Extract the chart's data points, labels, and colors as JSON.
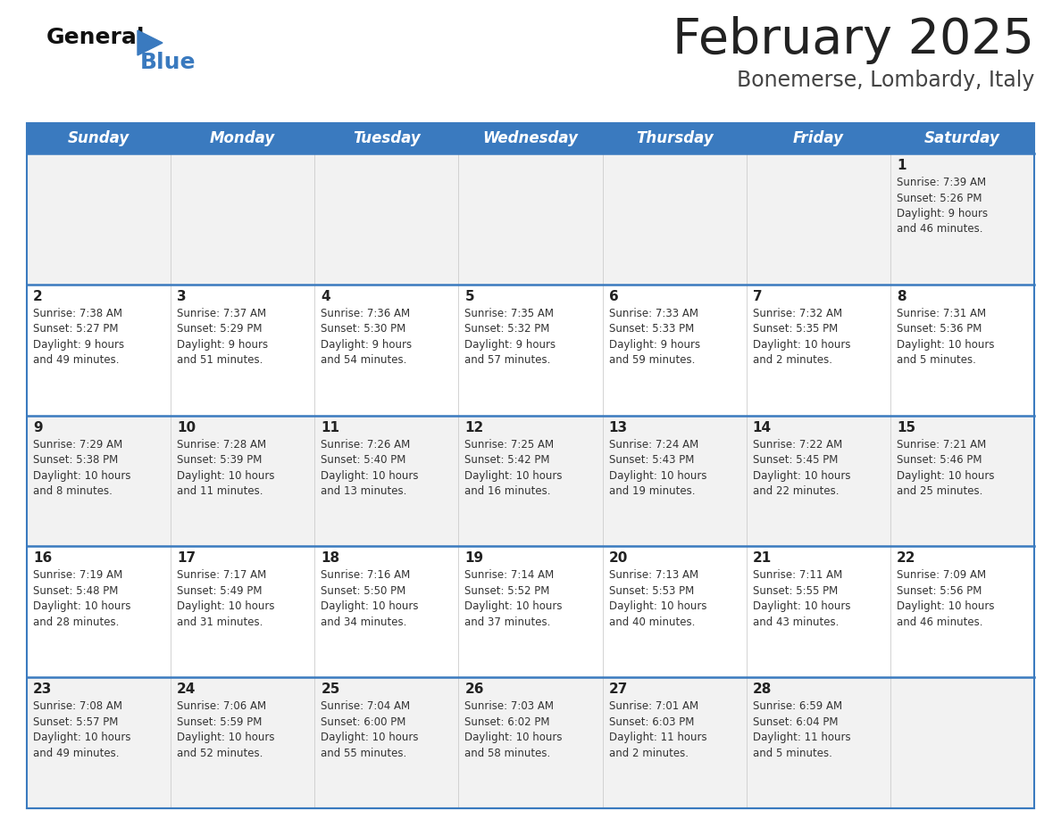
{
  "title": "February 2025",
  "subtitle": "Bonemerse, Lombardy, Italy",
  "header_bg": "#3a7abf",
  "header_text": "#ffffff",
  "row_bg_light": "#f2f2f2",
  "row_bg_white": "#ffffff",
  "border_color": "#3a7abf",
  "cell_border_color": "#aaaaaa",
  "day_headers": [
    "Sunday",
    "Monday",
    "Tuesday",
    "Wednesday",
    "Thursday",
    "Friday",
    "Saturday"
  ],
  "weeks": [
    {
      "days": [
        {
          "day": "",
          "info": ""
        },
        {
          "day": "",
          "info": ""
        },
        {
          "day": "",
          "info": ""
        },
        {
          "day": "",
          "info": ""
        },
        {
          "day": "",
          "info": ""
        },
        {
          "day": "",
          "info": ""
        },
        {
          "day": "1",
          "info": "Sunrise: 7:39 AM\nSunset: 5:26 PM\nDaylight: 9 hours\nand 46 minutes."
        }
      ]
    },
    {
      "days": [
        {
          "day": "2",
          "info": "Sunrise: 7:38 AM\nSunset: 5:27 PM\nDaylight: 9 hours\nand 49 minutes."
        },
        {
          "day": "3",
          "info": "Sunrise: 7:37 AM\nSunset: 5:29 PM\nDaylight: 9 hours\nand 51 minutes."
        },
        {
          "day": "4",
          "info": "Sunrise: 7:36 AM\nSunset: 5:30 PM\nDaylight: 9 hours\nand 54 minutes."
        },
        {
          "day": "5",
          "info": "Sunrise: 7:35 AM\nSunset: 5:32 PM\nDaylight: 9 hours\nand 57 minutes."
        },
        {
          "day": "6",
          "info": "Sunrise: 7:33 AM\nSunset: 5:33 PM\nDaylight: 9 hours\nand 59 minutes."
        },
        {
          "day": "7",
          "info": "Sunrise: 7:32 AM\nSunset: 5:35 PM\nDaylight: 10 hours\nand 2 minutes."
        },
        {
          "day": "8",
          "info": "Sunrise: 7:31 AM\nSunset: 5:36 PM\nDaylight: 10 hours\nand 5 minutes."
        }
      ]
    },
    {
      "days": [
        {
          "day": "9",
          "info": "Sunrise: 7:29 AM\nSunset: 5:38 PM\nDaylight: 10 hours\nand 8 minutes."
        },
        {
          "day": "10",
          "info": "Sunrise: 7:28 AM\nSunset: 5:39 PM\nDaylight: 10 hours\nand 11 minutes."
        },
        {
          "day": "11",
          "info": "Sunrise: 7:26 AM\nSunset: 5:40 PM\nDaylight: 10 hours\nand 13 minutes."
        },
        {
          "day": "12",
          "info": "Sunrise: 7:25 AM\nSunset: 5:42 PM\nDaylight: 10 hours\nand 16 minutes."
        },
        {
          "day": "13",
          "info": "Sunrise: 7:24 AM\nSunset: 5:43 PM\nDaylight: 10 hours\nand 19 minutes."
        },
        {
          "day": "14",
          "info": "Sunrise: 7:22 AM\nSunset: 5:45 PM\nDaylight: 10 hours\nand 22 minutes."
        },
        {
          "day": "15",
          "info": "Sunrise: 7:21 AM\nSunset: 5:46 PM\nDaylight: 10 hours\nand 25 minutes."
        }
      ]
    },
    {
      "days": [
        {
          "day": "16",
          "info": "Sunrise: 7:19 AM\nSunset: 5:48 PM\nDaylight: 10 hours\nand 28 minutes."
        },
        {
          "day": "17",
          "info": "Sunrise: 7:17 AM\nSunset: 5:49 PM\nDaylight: 10 hours\nand 31 minutes."
        },
        {
          "day": "18",
          "info": "Sunrise: 7:16 AM\nSunset: 5:50 PM\nDaylight: 10 hours\nand 34 minutes."
        },
        {
          "day": "19",
          "info": "Sunrise: 7:14 AM\nSunset: 5:52 PM\nDaylight: 10 hours\nand 37 minutes."
        },
        {
          "day": "20",
          "info": "Sunrise: 7:13 AM\nSunset: 5:53 PM\nDaylight: 10 hours\nand 40 minutes."
        },
        {
          "day": "21",
          "info": "Sunrise: 7:11 AM\nSunset: 5:55 PM\nDaylight: 10 hours\nand 43 minutes."
        },
        {
          "day": "22",
          "info": "Sunrise: 7:09 AM\nSunset: 5:56 PM\nDaylight: 10 hours\nand 46 minutes."
        }
      ]
    },
    {
      "days": [
        {
          "day": "23",
          "info": "Sunrise: 7:08 AM\nSunset: 5:57 PM\nDaylight: 10 hours\nand 49 minutes."
        },
        {
          "day": "24",
          "info": "Sunrise: 7:06 AM\nSunset: 5:59 PM\nDaylight: 10 hours\nand 52 minutes."
        },
        {
          "day": "25",
          "info": "Sunrise: 7:04 AM\nSunset: 6:00 PM\nDaylight: 10 hours\nand 55 minutes."
        },
        {
          "day": "26",
          "info": "Sunrise: 7:03 AM\nSunset: 6:02 PM\nDaylight: 10 hours\nand 58 minutes."
        },
        {
          "day": "27",
          "info": "Sunrise: 7:01 AM\nSunset: 6:03 PM\nDaylight: 11 hours\nand 2 minutes."
        },
        {
          "day": "28",
          "info": "Sunrise: 6:59 AM\nSunset: 6:04 PM\nDaylight: 11 hours\nand 5 minutes."
        },
        {
          "day": "",
          "info": ""
        }
      ]
    }
  ]
}
